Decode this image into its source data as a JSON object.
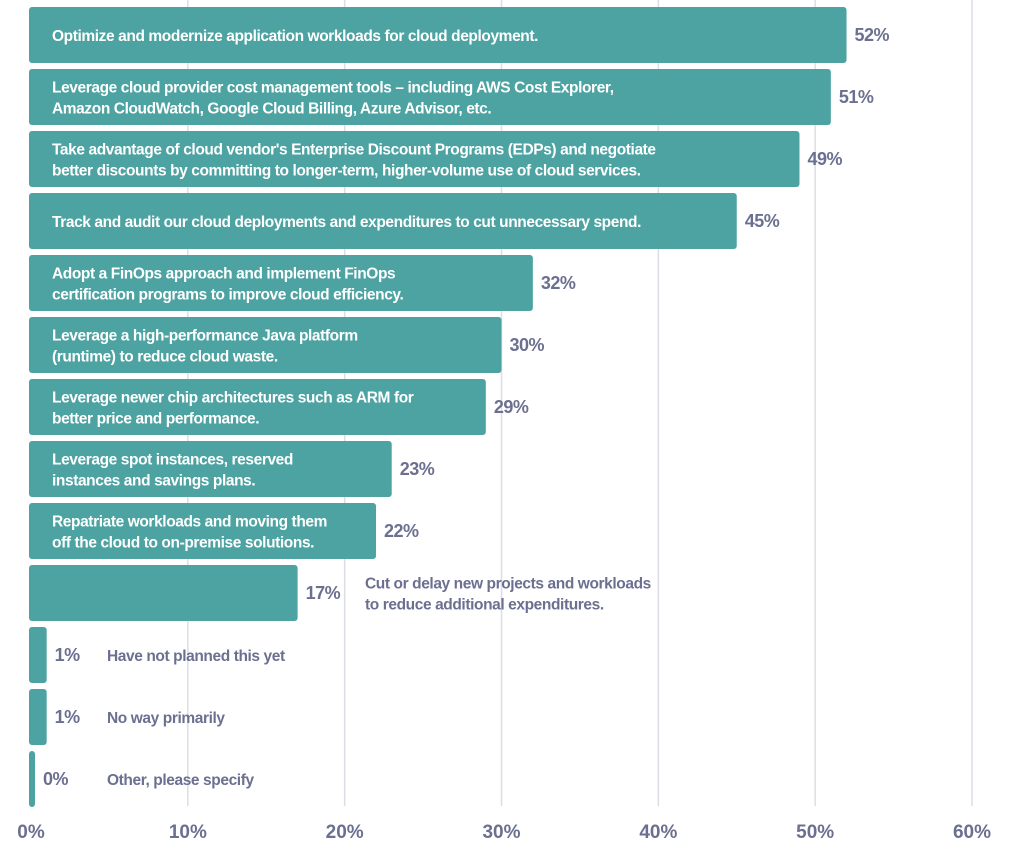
{
  "chart_data": {
    "type": "bar",
    "orientation": "horizontal",
    "categories": [
      [
        "Optimize and modernize application workloads for cloud deployment."
      ],
      [
        "Leverage cloud provider cost management tools – including AWS Cost Explorer,",
        "Amazon CloudWatch, Google Cloud Billing, Azure Advisor, etc."
      ],
      [
        "Take advantage of cloud vendor's Enterprise Discount Programs (EDPs) and negotiate",
        "better discounts by committing to longer-term, higher-volume use of cloud services."
      ],
      [
        "Track and audit our cloud deployments and expenditures to cut unnecessary spend."
      ],
      [
        "Adopt a FinOps approach and implement FinOps",
        "certification programs to improve cloud efficiency."
      ],
      [
        "Leverage a high-performance Java platform",
        "(runtime) to reduce cloud waste."
      ],
      [
        "Leverage newer chip architectures such as ARM for",
        "better price and performance."
      ],
      [
        "Leverage spot instances, reserved",
        "instances and savings plans."
      ],
      [
        "Repatriate workloads and moving them",
        "off the cloud to on-premise solutions."
      ],
      [
        "Cut or delay new projects and workloads",
        "to reduce additional expenditures."
      ],
      [
        "Have not planned this yet"
      ],
      [
        "No way primarily"
      ],
      [
        "Other, please specify"
      ]
    ],
    "values": [
      52,
      51,
      49,
      45,
      32,
      30,
      29,
      23,
      22,
      17,
      1,
      1,
      0
    ],
    "value_labels": [
      "52%",
      "51%",
      "49%",
      "45%",
      "32%",
      "30%",
      "29%",
      "23%",
      "22%",
      "17%",
      "1%",
      "1%",
      "0%"
    ],
    "label_inside": [
      true,
      true,
      true,
      true,
      true,
      true,
      true,
      true,
      true,
      false,
      false,
      false,
      false
    ],
    "xlim": [
      0,
      60
    ],
    "xticks": [
      "0%",
      "10%",
      "20%",
      "30%",
      "40%",
      "50%",
      "60%"
    ],
    "grid": true,
    "colors": {
      "bar": "#4da3a2",
      "text": "#6b7090",
      "grid": "#dcdee6",
      "inside_label": "#ffffff"
    }
  }
}
